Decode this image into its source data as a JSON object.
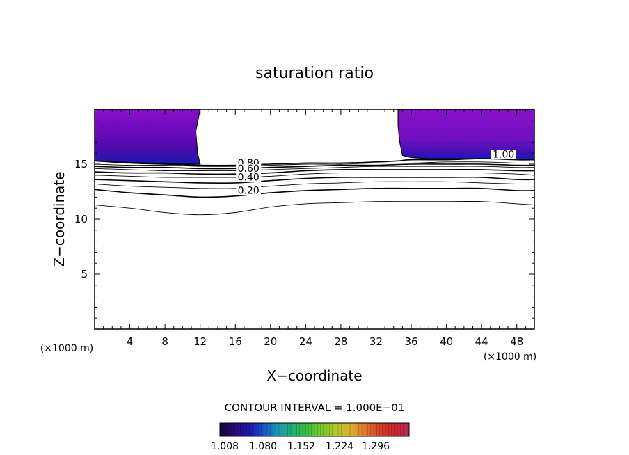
{
  "chart_data": {
    "type": "contour",
    "title": "saturation ratio",
    "xlabel": "X−coordinate",
    "ylabel": "Z−coordinate",
    "x_unit_label": "(×1000 m)",
    "z_unit_label": "(×1000 m)",
    "xlim": [
      0,
      50
    ],
    "ylim": [
      0,
      20
    ],
    "x_ticks": [
      "4",
      "8",
      "12",
      "16",
      "20",
      "24",
      "28",
      "32",
      "36",
      "40",
      "44",
      "48"
    ],
    "x_tick_values": [
      4,
      8,
      12,
      16,
      20,
      24,
      28,
      32,
      36,
      40,
      44,
      48
    ],
    "y_ticks": [
      "5",
      "10",
      "15"
    ],
    "y_tick_values": [
      5,
      10,
      15
    ],
    "contour_interval_text": "CONTOUR INTERVAL = 1.000E−01",
    "contour_labels": [
      {
        "text": "0.80",
        "x": 17.5,
        "z": 14.8
      },
      {
        "text": "0.60",
        "x": 17.5,
        "z": 14.3
      },
      {
        "text": "0.40",
        "x": 17.5,
        "z": 13.5
      },
      {
        "text": "0.20",
        "x": 17.5,
        "z": 12.3
      },
      {
        "text": "1.00",
        "x": 46.5,
        "z": 15.6
      }
    ],
    "contours": [
      {
        "level": 0.1,
        "points": [
          [
            0,
            11.3
          ],
          [
            4,
            11.0
          ],
          [
            8,
            10.6
          ],
          [
            12,
            10.4
          ],
          [
            16,
            10.6
          ],
          [
            20,
            11.1
          ],
          [
            24,
            11.4
          ],
          [
            28,
            11.5
          ],
          [
            32,
            11.6
          ],
          [
            36,
            11.6
          ],
          [
            40,
            11.6
          ],
          [
            44,
            11.6
          ],
          [
            48,
            11.4
          ],
          [
            50,
            11.3
          ]
        ]
      },
      {
        "level": 0.2,
        "points": [
          [
            0,
            12.7
          ],
          [
            4,
            12.4
          ],
          [
            8,
            12.2
          ],
          [
            12,
            12.0
          ],
          [
            16,
            12.1
          ],
          [
            20,
            12.4
          ],
          [
            24,
            12.6
          ],
          [
            28,
            12.7
          ],
          [
            32,
            12.8
          ],
          [
            36,
            12.8
          ],
          [
            40,
            12.8
          ],
          [
            44,
            12.8
          ],
          [
            48,
            12.6
          ],
          [
            50,
            12.6
          ]
        ]
      },
      {
        "level": 0.3,
        "points": [
          [
            0,
            13.2
          ],
          [
            4,
            13.0
          ],
          [
            8,
            12.9
          ],
          [
            12,
            12.8
          ],
          [
            16,
            12.8
          ],
          [
            20,
            13.0
          ],
          [
            24,
            13.2
          ],
          [
            28,
            13.3
          ],
          [
            32,
            13.4
          ],
          [
            36,
            13.4
          ],
          [
            40,
            13.4
          ],
          [
            44,
            13.3
          ],
          [
            48,
            13.2
          ],
          [
            50,
            13.2
          ]
        ]
      },
      {
        "level": 0.4,
        "points": [
          [
            0,
            13.6
          ],
          [
            4,
            13.5
          ],
          [
            8,
            13.4
          ],
          [
            12,
            13.3
          ],
          [
            16,
            13.3
          ],
          [
            20,
            13.5
          ],
          [
            24,
            13.7
          ],
          [
            28,
            13.8
          ],
          [
            32,
            13.8
          ],
          [
            36,
            13.8
          ],
          [
            40,
            13.8
          ],
          [
            44,
            13.8
          ],
          [
            48,
            13.6
          ],
          [
            50,
            13.6
          ]
        ]
      },
      {
        "level": 0.5,
        "points": [
          [
            0,
            14.0
          ],
          [
            4,
            13.9
          ],
          [
            8,
            13.8
          ],
          [
            12,
            13.8
          ],
          [
            16,
            13.8
          ],
          [
            20,
            13.9
          ],
          [
            24,
            14.1
          ],
          [
            28,
            14.2
          ],
          [
            32,
            14.2
          ],
          [
            36,
            14.2
          ],
          [
            40,
            14.2
          ],
          [
            44,
            14.2
          ],
          [
            48,
            14.1
          ],
          [
            50,
            14.0
          ]
        ]
      },
      {
        "level": 0.6,
        "points": [
          [
            0,
            14.3
          ],
          [
            4,
            14.2
          ],
          [
            8,
            14.2
          ],
          [
            12,
            14.1
          ],
          [
            16,
            14.1
          ],
          [
            20,
            14.2
          ],
          [
            24,
            14.4
          ],
          [
            28,
            14.5
          ],
          [
            32,
            14.5
          ],
          [
            36,
            14.5
          ],
          [
            40,
            14.5
          ],
          [
            44,
            14.5
          ],
          [
            48,
            14.4
          ],
          [
            50,
            14.4
          ]
        ]
      },
      {
        "level": 0.7,
        "points": [
          [
            0,
            14.6
          ],
          [
            4,
            14.5
          ],
          [
            8,
            14.4
          ],
          [
            12,
            14.4
          ],
          [
            16,
            14.4
          ],
          [
            20,
            14.5
          ],
          [
            24,
            14.6
          ],
          [
            28,
            14.7
          ],
          [
            32,
            14.8
          ],
          [
            36,
            14.8
          ],
          [
            40,
            14.8
          ],
          [
            44,
            14.8
          ],
          [
            48,
            14.7
          ],
          [
            50,
            14.7
          ]
        ]
      },
      {
        "level": 0.8,
        "points": [
          [
            0,
            14.8
          ],
          [
            4,
            14.7
          ],
          [
            8,
            14.7
          ],
          [
            12,
            14.6
          ],
          [
            16,
            14.6
          ],
          [
            20,
            14.7
          ],
          [
            24,
            14.8
          ],
          [
            28,
            14.9
          ],
          [
            32,
            14.9
          ],
          [
            36,
            15.0
          ],
          [
            40,
            15.0
          ],
          [
            44,
            15.0
          ],
          [
            48,
            14.9
          ],
          [
            50,
            14.9
          ]
        ]
      },
      {
        "level": 0.9,
        "points": [
          [
            0,
            15.0
          ],
          [
            4,
            14.9
          ],
          [
            8,
            14.9
          ],
          [
            12,
            14.8
          ],
          [
            16,
            14.8
          ],
          [
            20,
            14.9
          ],
          [
            24,
            15.0
          ],
          [
            28,
            15.0
          ],
          [
            32,
            15.1
          ],
          [
            36,
            15.1
          ],
          [
            40,
            15.2
          ],
          [
            44,
            15.2
          ],
          [
            48,
            15.1
          ],
          [
            50,
            15.1
          ]
        ]
      },
      {
        "level": 1.0,
        "points": [
          [
            0,
            15.3
          ],
          [
            4,
            15.1
          ],
          [
            8,
            15.0
          ],
          [
            12,
            14.9
          ],
          [
            16,
            14.9
          ],
          [
            20,
            15.0
          ],
          [
            24,
            15.1
          ],
          [
            28,
            15.1
          ],
          [
            32,
            15.2
          ],
          [
            34.5,
            15.3
          ],
          [
            36,
            15.4
          ],
          [
            40,
            15.4
          ],
          [
            44,
            15.5
          ],
          [
            48,
            15.4
          ],
          [
            50,
            15.4
          ]
        ]
      }
    ],
    "shaded_regions": [
      {
        "name": "left",
        "outline": [
          [
            0,
            20
          ],
          [
            12,
            20
          ],
          [
            11.5,
            18.0
          ],
          [
            11.7,
            16.0
          ],
          [
            12,
            15.0
          ],
          [
            10,
            15.0
          ],
          [
            6,
            15.1
          ],
          [
            2,
            15.2
          ],
          [
            0,
            15.3
          ]
        ]
      },
      {
        "name": "right",
        "outline": [
          [
            34.5,
            20
          ],
          [
            50,
            20
          ],
          [
            50,
            15.4
          ],
          [
            46,
            15.5
          ],
          [
            42,
            15.5
          ],
          [
            38,
            15.5
          ],
          [
            36,
            15.6
          ],
          [
            35,
            15.8
          ],
          [
            34.7,
            17.0
          ],
          [
            34.5,
            18.5
          ]
        ]
      }
    ],
    "colorbar": {
      "tick_labels": [
        "1.008",
        "1.080",
        "1.152",
        "1.224",
        "1.296"
      ],
      "colors": [
        "#1a0040",
        "#2a0c7a",
        "#1c1ab4",
        "#1a55c8",
        "#1a9ab0",
        "#20b070",
        "#3cc040",
        "#78cc30",
        "#b0c828",
        "#d8b030",
        "#e07a2c",
        "#d84428",
        "#c82828",
        "#b82a50"
      ]
    },
    "fill_colors": {
      "top": "#8a10c8",
      "mid": "#6008b4",
      "deep": "#3810a8",
      "edge": "#1418c0"
    }
  }
}
